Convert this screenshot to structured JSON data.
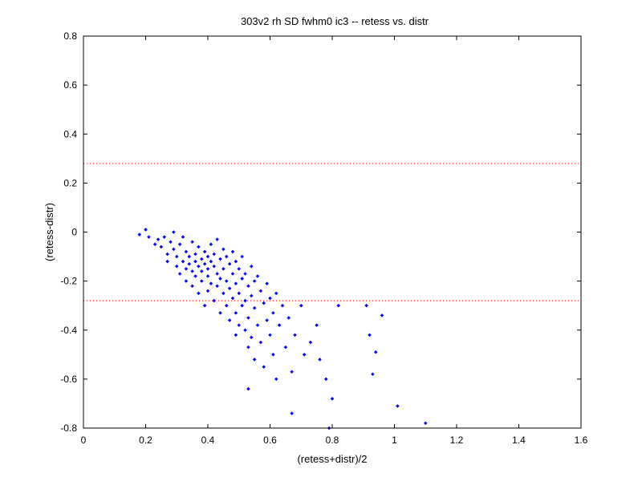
{
  "chart_data": {
    "type": "scatter",
    "title": "303v2 rh SD fwhm0 ic3 -- retess vs. distr",
    "xlabel": "(retess+distr)/2",
    "ylabel": "(retess-distr)",
    "xlim": [
      0,
      1.6
    ],
    "ylim": [
      -0.8,
      0.8
    ],
    "xticks": [
      0,
      0.2,
      0.4,
      0.6,
      0.8,
      1,
      1.2,
      1.4,
      1.6
    ],
    "xtick_labels": [
      "0",
      "0.2",
      "0.4",
      "0.6",
      "0.8",
      "1",
      "1.2",
      "1.4",
      "1.6"
    ],
    "yticks": [
      -0.8,
      -0.6,
      -0.4,
      -0.2,
      0,
      0.2,
      0.4,
      0.6,
      0.8
    ],
    "ytick_labels": [
      "-0.8",
      "-0.6",
      "-0.4",
      "-0.2",
      "0",
      "0.2",
      "0.4",
      "0.6",
      "0.8"
    ],
    "grid": false,
    "marker_color": "#0000ff",
    "reference_lines": [
      {
        "y": 0.28,
        "style": "dotted",
        "color": "#ff0000"
      },
      {
        "y": -0.28,
        "style": "dotted",
        "color": "#ff0000"
      }
    ],
    "series": [
      {
        "points": [
          [
            0.18,
            -0.01
          ],
          [
            0.2,
            0.01
          ],
          [
            0.21,
            -0.02
          ],
          [
            0.23,
            -0.05
          ],
          [
            0.24,
            -0.03
          ],
          [
            0.25,
            -0.06
          ],
          [
            0.26,
            -0.02
          ],
          [
            0.27,
            -0.09
          ],
          [
            0.27,
            -0.12
          ],
          [
            0.28,
            -0.04
          ],
          [
            0.29,
            0.0
          ],
          [
            0.29,
            -0.07
          ],
          [
            0.3,
            -0.1
          ],
          [
            0.3,
            -0.14
          ],
          [
            0.31,
            -0.17
          ],
          [
            0.31,
            -0.05
          ],
          [
            0.32,
            -0.02
          ],
          [
            0.32,
            -0.12
          ],
          [
            0.33,
            -0.08
          ],
          [
            0.33,
            -0.15
          ],
          [
            0.33,
            -0.2
          ],
          [
            0.34,
            -0.1
          ],
          [
            0.34,
            -0.13
          ],
          [
            0.35,
            -0.04
          ],
          [
            0.35,
            -0.16
          ],
          [
            0.35,
            -0.22
          ],
          [
            0.36,
            -0.09
          ],
          [
            0.36,
            -0.12
          ],
          [
            0.36,
            -0.18
          ],
          [
            0.37,
            -0.06
          ],
          [
            0.37,
            -0.14
          ],
          [
            0.37,
            -0.25
          ],
          [
            0.38,
            -0.11
          ],
          [
            0.38,
            -0.16
          ],
          [
            0.38,
            -0.2
          ],
          [
            0.39,
            -0.08
          ],
          [
            0.39,
            -0.13
          ],
          [
            0.39,
            -0.3
          ],
          [
            0.4,
            -0.1
          ],
          [
            0.4,
            -0.15
          ],
          [
            0.4,
            -0.18
          ],
          [
            0.4,
            -0.24
          ],
          [
            0.41,
            -0.05
          ],
          [
            0.41,
            -0.12
          ],
          [
            0.41,
            -0.21
          ],
          [
            0.42,
            -0.09
          ],
          [
            0.42,
            -0.14
          ],
          [
            0.42,
            -0.28
          ],
          [
            0.43,
            -0.03
          ],
          [
            0.43,
            -0.17
          ],
          [
            0.43,
            -0.22
          ],
          [
            0.44,
            -0.11
          ],
          [
            0.44,
            -0.19
          ],
          [
            0.44,
            -0.33
          ],
          [
            0.45,
            -0.07
          ],
          [
            0.45,
            -0.15
          ],
          [
            0.45,
            -0.25
          ],
          [
            0.46,
            -0.1
          ],
          [
            0.46,
            -0.2
          ],
          [
            0.46,
            -0.3
          ],
          [
            0.47,
            -0.13
          ],
          [
            0.47,
            -0.23
          ],
          [
            0.47,
            -0.36
          ],
          [
            0.48,
            -0.08
          ],
          [
            0.48,
            -0.17
          ],
          [
            0.48,
            -0.27
          ],
          [
            0.49,
            -0.12
          ],
          [
            0.49,
            -0.21
          ],
          [
            0.49,
            -0.33
          ],
          [
            0.49,
            -0.42
          ],
          [
            0.5,
            -0.15
          ],
          [
            0.5,
            -0.25
          ],
          [
            0.5,
            -0.38
          ],
          [
            0.51,
            -0.1
          ],
          [
            0.51,
            -0.19
          ],
          [
            0.51,
            -0.3
          ],
          [
            0.52,
            -0.17
          ],
          [
            0.52,
            -0.28
          ],
          [
            0.52,
            -0.4
          ],
          [
            0.53,
            -0.22
          ],
          [
            0.53,
            -0.35
          ],
          [
            0.53,
            -0.47
          ],
          [
            0.54,
            -0.14
          ],
          [
            0.54,
            -0.26
          ],
          [
            0.54,
            -0.43
          ],
          [
            0.55,
            -0.2
          ],
          [
            0.55,
            -0.31
          ],
          [
            0.55,
            -0.52
          ],
          [
            0.56,
            -0.18
          ],
          [
            0.56,
            -0.38
          ],
          [
            0.57,
            -0.24
          ],
          [
            0.57,
            -0.45
          ],
          [
            0.58,
            -0.29
          ],
          [
            0.58,
            -0.55
          ],
          [
            0.59,
            -0.21
          ],
          [
            0.59,
            -0.36
          ],
          [
            0.6,
            -0.27
          ],
          [
            0.6,
            -0.42
          ],
          [
            0.61,
            -0.33
          ],
          [
            0.61,
            -0.5
          ],
          [
            0.62,
            -0.25
          ],
          [
            0.62,
            -0.6
          ],
          [
            0.63,
            -0.38
          ],
          [
            0.64,
            -0.3
          ],
          [
            0.65,
            -0.47
          ],
          [
            0.66,
            -0.35
          ],
          [
            0.67,
            -0.57
          ],
          [
            0.68,
            -0.42
          ],
          [
            0.7,
            -0.3
          ],
          [
            0.71,
            -0.5
          ],
          [
            0.73,
            -0.45
          ],
          [
            0.75,
            -0.38
          ],
          [
            0.76,
            -0.52
          ],
          [
            0.78,
            -0.6
          ],
          [
            0.8,
            -0.68
          ],
          [
            0.82,
            -0.3
          ],
          [
            0.91,
            -0.3
          ],
          [
            0.92,
            -0.42
          ],
          [
            0.93,
            -0.58
          ],
          [
            0.94,
            -0.49
          ],
          [
            0.96,
            -0.34
          ],
          [
            1.01,
            -0.71
          ],
          [
            1.1,
            -0.78
          ],
          [
            0.79,
            -0.8
          ],
          [
            0.67,
            -0.74
          ],
          [
            0.53,
            -0.64
          ]
        ]
      }
    ]
  }
}
